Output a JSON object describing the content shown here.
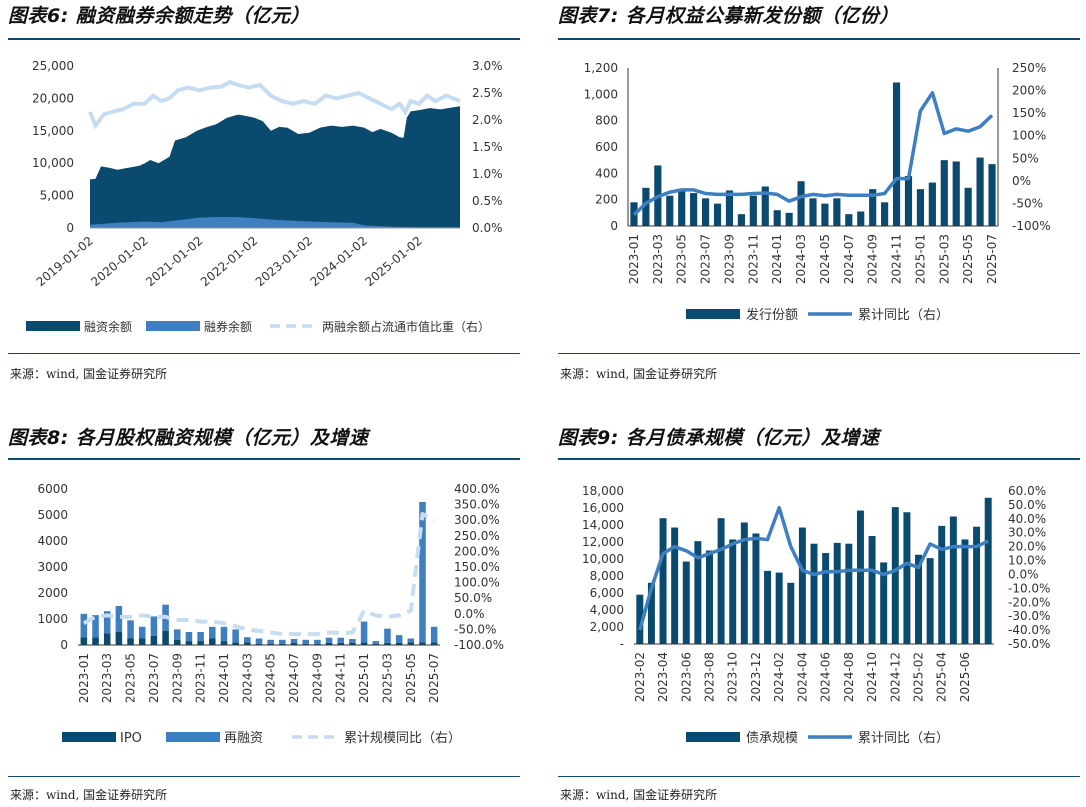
{
  "colors": {
    "dark": "#0b4a6f",
    "mid": "#3e7fc1",
    "light": "#c6dcf0",
    "rule": "#0c4a6e"
  },
  "source_label": "来源：wind, 国金证券研究所",
  "chart_data": [
    {
      "id": "c6",
      "title": "图表6: 融资融券余额走势（亿元）",
      "type": "area",
      "yleft": {
        "min": 0,
        "max": 25000,
        "ticks": [
          "0",
          "5,000",
          "10,000",
          "15,000",
          "20,000",
          "25,000"
        ]
      },
      "yright": {
        "min": 0,
        "max": 3.0,
        "ticks": [
          "0.0%",
          "0.5%",
          "1.0%",
          "1.5%",
          "2.0%",
          "2.5%",
          "3.0%"
        ]
      },
      "x_ticks": [
        "2019-01-02",
        "2020-01-02",
        "2021-01-02",
        "2022-01-02",
        "2023-01-02",
        "2024-01-02",
        "2025-01-02"
      ],
      "x_range": [
        2019.0,
        2025.75
      ],
      "legend": [
        "融资余额",
        "融券余额",
        "两融余额占流通市值比重（右）"
      ],
      "financing_balance": [
        [
          2019.0,
          7500
        ],
        [
          2019.1,
          7600
        ],
        [
          2019.2,
          9500
        ],
        [
          2019.35,
          9300
        ],
        [
          2019.5,
          9000
        ],
        [
          2019.7,
          9300
        ],
        [
          2019.9,
          9600
        ],
        [
          2020.0,
          10000
        ],
        [
          2020.1,
          10500
        ],
        [
          2020.25,
          10000
        ],
        [
          2020.45,
          11000
        ],
        [
          2020.55,
          13500
        ],
        [
          2020.75,
          14000
        ],
        [
          2020.95,
          15000
        ],
        [
          2021.1,
          15500
        ],
        [
          2021.3,
          16000
        ],
        [
          2021.5,
          17000
        ],
        [
          2021.7,
          17500
        ],
        [
          2021.9,
          17200
        ],
        [
          2022.0,
          17000
        ],
        [
          2022.15,
          16500
        ],
        [
          2022.3,
          15000
        ],
        [
          2022.45,
          15600
        ],
        [
          2022.6,
          15500
        ],
        [
          2022.8,
          14500
        ],
        [
          2023.0,
          14700
        ],
        [
          2023.2,
          15500
        ],
        [
          2023.4,
          15800
        ],
        [
          2023.6,
          15600
        ],
        [
          2023.8,
          15800
        ],
        [
          2024.0,
          15500
        ],
        [
          2024.15,
          14800
        ],
        [
          2024.3,
          15300
        ],
        [
          2024.5,
          14700
        ],
        [
          2024.65,
          14000
        ],
        [
          2024.72,
          13900
        ],
        [
          2024.78,
          17000
        ],
        [
          2024.85,
          18000
        ],
        [
          2025.0,
          18200
        ],
        [
          2025.2,
          18500
        ],
        [
          2025.4,
          18300
        ],
        [
          2025.6,
          18600
        ],
        [
          2025.75,
          18800
        ]
      ],
      "securities_lending_balance": [
        [
          2019.0,
          500
        ],
        [
          2019.5,
          800
        ],
        [
          2020.0,
          1000
        ],
        [
          2020.3,
          900
        ],
        [
          2020.6,
          1200
        ],
        [
          2021.0,
          1600
        ],
        [
          2021.3,
          1700
        ],
        [
          2021.7,
          1700
        ],
        [
          2022.0,
          1500
        ],
        [
          2022.5,
          1200
        ],
        [
          2023.0,
          1000
        ],
        [
          2023.4,
          900
        ],
        [
          2023.8,
          800
        ],
        [
          2024.0,
          400
        ],
        [
          2024.5,
          200
        ],
        [
          2025.0,
          120
        ],
        [
          2025.75,
          120
        ]
      ],
      "ratio_pct": [
        [
          2019.0,
          2.15
        ],
        [
          2019.1,
          1.9
        ],
        [
          2019.25,
          2.1
        ],
        [
          2019.4,
          2.15
        ],
        [
          2019.6,
          2.2
        ],
        [
          2019.8,
          2.3
        ],
        [
          2020.0,
          2.3
        ],
        [
          2020.15,
          2.45
        ],
        [
          2020.3,
          2.35
        ],
        [
          2020.45,
          2.4
        ],
        [
          2020.6,
          2.55
        ],
        [
          2020.8,
          2.6
        ],
        [
          2021.0,
          2.55
        ],
        [
          2021.2,
          2.6
        ],
        [
          2021.4,
          2.62
        ],
        [
          2021.55,
          2.7
        ],
        [
          2021.7,
          2.65
        ],
        [
          2021.9,
          2.6
        ],
        [
          2022.1,
          2.65
        ],
        [
          2022.3,
          2.45
        ],
        [
          2022.5,
          2.35
        ],
        [
          2022.7,
          2.3
        ],
        [
          2022.9,
          2.35
        ],
        [
          2023.1,
          2.3
        ],
        [
          2023.3,
          2.45
        ],
        [
          2023.5,
          2.4
        ],
        [
          2023.7,
          2.45
        ],
        [
          2023.9,
          2.5
        ],
        [
          2024.1,
          2.4
        ],
        [
          2024.3,
          2.3
        ],
        [
          2024.5,
          2.2
        ],
        [
          2024.65,
          2.3
        ],
        [
          2024.75,
          2.15
        ],
        [
          2024.85,
          2.35
        ],
        [
          2025.0,
          2.3
        ],
        [
          2025.15,
          2.45
        ],
        [
          2025.3,
          2.35
        ],
        [
          2025.5,
          2.45
        ],
        [
          2025.75,
          2.35
        ]
      ]
    },
    {
      "id": "c7",
      "title": "图表7: 各月权益公募新发份额（亿份）",
      "type": "bar+line",
      "yleft": {
        "min": 0,
        "max": 1200,
        "ticks": [
          "0",
          "200",
          "400",
          "600",
          "800",
          "1,000",
          "1,200"
        ]
      },
      "yright": {
        "min": -100,
        "max": 250,
        "ticks": [
          "-100%",
          "-50%",
          "0%",
          "50%",
          "100%",
          "150%",
          "200%",
          "250%"
        ]
      },
      "categories": [
        "2023-01",
        "2023-02",
        "2023-03",
        "2023-04",
        "2023-05",
        "2023-06",
        "2023-07",
        "2023-08",
        "2023-09",
        "2023-10",
        "2023-11",
        "2023-12",
        "2024-01",
        "2024-02",
        "2024-03",
        "2024-04",
        "2024-05",
        "2024-06",
        "2024-07",
        "2024-08",
        "2024-09",
        "2024-10",
        "2024-11",
        "2024-12",
        "2025-01",
        "2025-02",
        "2025-03",
        "2025-04",
        "2025-05",
        "2025-06",
        "2025-07"
      ],
      "x_tick_labels": [
        "2023-01",
        "2023-03",
        "2023-05",
        "2023-07",
        "2023-09",
        "2023-11",
        "2024-01",
        "2024-03",
        "2024-05",
        "2024-07",
        "2024-09",
        "2024-11",
        "2025-01",
        "2025-03",
        "2025-05",
        "2025-07"
      ],
      "series": [
        {
          "name": "发行份额",
          "values": [
            180,
            290,
            460,
            230,
            270,
            250,
            210,
            170,
            270,
            90,
            230,
            300,
            120,
            100,
            340,
            210,
            170,
            210,
            90,
            110,
            280,
            180,
            1090,
            380,
            280,
            330,
            500,
            490,
            290,
            520,
            470
          ]
        },
        {
          "name": "累计同比（右）",
          "values": [
            -75,
            -50,
            -35,
            -25,
            -20,
            -20,
            -28,
            -30,
            -30,
            -30,
            -28,
            -27,
            -30,
            -45,
            -35,
            -30,
            -33,
            -30,
            -32,
            -32,
            -32,
            -28,
            5,
            5,
            155,
            195,
            105,
            115,
            110,
            120,
            145
          ]
        }
      ],
      "legend": [
        "发行份额",
        "累计同比（右）"
      ]
    },
    {
      "id": "c8",
      "title": "图表8: 各月股权融资规模（亿元）及增速",
      "type": "stacked-bar+line",
      "yleft": {
        "min": 0,
        "max": 6000,
        "ticks": [
          "0",
          "1000",
          "2000",
          "3000",
          "4000",
          "5000",
          "6000"
        ]
      },
      "yright": {
        "min": -100,
        "max": 400,
        "ticks": [
          "-100.0%",
          "-50.0%",
          "0.0%",
          "50.0%",
          "100.0%",
          "150.0%",
          "200.0%",
          "250.0%",
          "300.0%",
          "350.0%",
          "400.0%"
        ]
      },
      "categories": [
        "2023-01",
        "2023-02",
        "2023-03",
        "2023-04",
        "2023-05",
        "2023-06",
        "2023-07",
        "2023-08",
        "2023-09",
        "2023-10",
        "2023-11",
        "2023-12",
        "2024-01",
        "2024-02",
        "2024-03",
        "2024-04",
        "2024-05",
        "2024-06",
        "2024-07",
        "2024-08",
        "2024-09",
        "2024-10",
        "2024-11",
        "2024-12",
        "2025-01",
        "2025-02",
        "2025-03",
        "2025-04",
        "2025-05",
        "2025-06",
        "2025-07"
      ],
      "x_tick_labels": [
        "2023-01",
        "2023-03",
        "2023-05",
        "2023-07",
        "2023-09",
        "2023-11",
        "2024-01",
        "2024-03",
        "2024-05",
        "2024-07",
        "2024-09",
        "2024-11",
        "2025-01",
        "2025-03",
        "2025-05",
        "2025-07"
      ],
      "series": [
        {
          "name": "IPO",
          "values": [
            300,
            300,
            450,
            500,
            250,
            250,
            350,
            550,
            200,
            150,
            150,
            250,
            150,
            100,
            100,
            50,
            50,
            50,
            80,
            50,
            50,
            80,
            80,
            80,
            100,
            50,
            80,
            80,
            100,
            100,
            100
          ]
        },
        {
          "name": "再融资",
          "values": [
            900,
            850,
            850,
            1000,
            700,
            450,
            750,
            1000,
            400,
            350,
            350,
            450,
            550,
            500,
            200,
            200,
            150,
            150,
            150,
            150,
            150,
            200,
            200,
            150,
            800,
            100,
            550,
            300,
            150,
            5400,
            600
          ]
        },
        {
          "name": "累计规模同比（右）",
          "values": [
            -30,
            -10,
            -5,
            -10,
            -10,
            -5,
            -10,
            -10,
            -20,
            -20,
            -25,
            -25,
            -30,
            -40,
            -50,
            -55,
            -60,
            -65,
            -65,
            -65,
            -65,
            -60,
            -62,
            -60,
            10,
            -5,
            -10,
            -5,
            10,
            320,
            300
          ]
        }
      ],
      "legend": [
        "IPO",
        "再融资",
        "累计规模同比（右）"
      ]
    },
    {
      "id": "c9",
      "title": "图表9: 各月债承规模（亿元）及增速",
      "type": "bar+line",
      "yleft": {
        "min": 0,
        "max": 18000,
        "ticks": [
          "-",
          "2,000",
          "4,000",
          "6,000",
          "8,000",
          "10,000",
          "12,000",
          "14,000",
          "16,000",
          "18,000"
        ]
      },
      "yright": {
        "min": -50,
        "max": 60,
        "ticks": [
          "-50.0%",
          "-40.0%",
          "-30.0%",
          "-20.0%",
          "-10.0%",
          "0.0%",
          "10.0%",
          "20.0%",
          "30.0%",
          "40.0%",
          "50.0%",
          "60.0%"
        ]
      },
      "categories": [
        "2023-02",
        "2023-03",
        "2023-04",
        "2023-05",
        "2023-06",
        "2023-07",
        "2023-08",
        "2023-09",
        "2023-10",
        "2023-11",
        "2023-12",
        "2024-01",
        "2024-02",
        "2024-03",
        "2024-04",
        "2024-05",
        "2024-06",
        "2024-07",
        "2024-08",
        "2024-09",
        "2024-10",
        "2024-11",
        "2024-12",
        "2025-01",
        "2025-02",
        "2025-03",
        "2025-04",
        "2025-05",
        "2025-06",
        "2025-07",
        "2025-08"
      ],
      "x_tick_labels": [
        "2023-02",
        "2023-04",
        "2023-06",
        "2023-08",
        "2023-10",
        "2023-12",
        "2024-02",
        "2024-04",
        "2024-06",
        "2024-08",
        "2024-10",
        "2024-12",
        "2025-02",
        "2025-04",
        "2025-06"
      ],
      "series": [
        {
          "name": "债承规模",
          "values": [
            5800,
            7200,
            14800,
            13700,
            9700,
            12100,
            11000,
            14800,
            12300,
            14300,
            13000,
            8600,
            8400,
            7200,
            13700,
            11800,
            10700,
            11900,
            11800,
            15700,
            12700,
            9600,
            16100,
            15500,
            10500,
            10100,
            13900,
            15000,
            12300,
            13800,
            17200
          ]
        },
        {
          "name": "累计同比（右）",
          "values": [
            -40,
            -10,
            15,
            20,
            17,
            12,
            15,
            18,
            22,
            25,
            26,
            25,
            48,
            20,
            3,
            0,
            2,
            2,
            3,
            3,
            3,
            0,
            3,
            8,
            5,
            22,
            18,
            20,
            20,
            20,
            24
          ]
        }
      ],
      "legend": [
        "债承规模",
        "累计同比（右）"
      ]
    }
  ]
}
